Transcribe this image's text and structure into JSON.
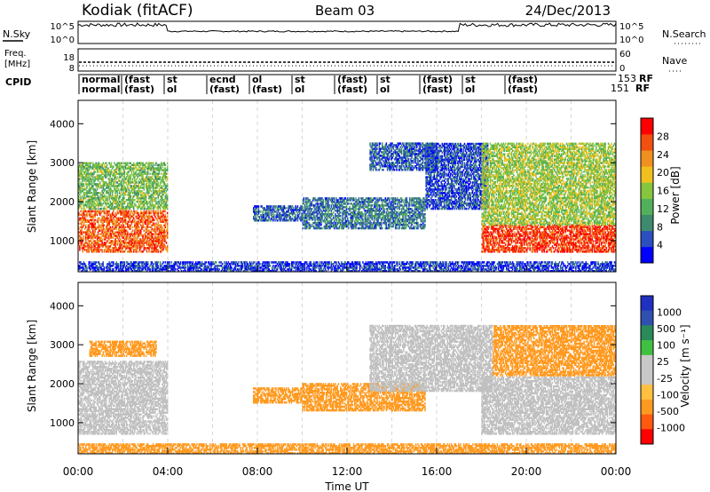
{
  "header": {
    "station": "Kodiak (fitACF)",
    "beam": "Beam 03",
    "date": "24/Dec/2013"
  },
  "noise_panel": {
    "left_label": "N.Sky",
    "right_label": "N.Search",
    "ticks": [
      "10^5",
      "10^0"
    ],
    "right_ticks": [
      "10^5",
      "10^0"
    ]
  },
  "freq_panel": {
    "left_label_1": "Freq.",
    "left_label_2": "[MHz]",
    "left_ticks": [
      "18",
      "8"
    ],
    "right_label": "Nave",
    "right_ticks": [
      "60",
      "0"
    ]
  },
  "cpid_panel": {
    "label": "CPID",
    "right_values": [
      "153",
      "151"
    ],
    "right_suffix": "RF",
    "entries": [
      {
        "top": "normal",
        "bottom": "normal"
      },
      {
        "top": "(fast",
        "bottom": "(fast)"
      },
      {
        "top": "st",
        "bottom": "ol"
      },
      {
        "top": "ecnd",
        "bottom": "(fast)"
      },
      {
        "top": "ol",
        "bottom": "(fast)"
      },
      {
        "top": "st",
        "bottom": "ol"
      },
      {
        "top": "(fast)",
        "bottom": "(fast)"
      },
      {
        "top": "st",
        "bottom": "ol"
      },
      {
        "top": "(fast)",
        "bottom": "(fast)"
      },
      {
        "top": "st",
        "bottom": "ol"
      },
      {
        "top": "(fast)",
        "bottom": "(fast)"
      }
    ]
  },
  "colors": {
    "power_scale": [
      "#0000ff",
      "#2b4fbf",
      "#3e8a6e",
      "#52b05a",
      "#86c63e",
      "#f0c020",
      "#f09020",
      "#f05010",
      "#ff0000"
    ],
    "velocity_scale": [
      "#ff0000",
      "#ff5a10",
      "#ff9a20",
      "#ffc040",
      "#c8c8c8",
      "#c8c8c8",
      "#40c040",
      "#2a8a5a",
      "#3050b0",
      "#2030c0"
    ],
    "ground_scatter": "#c0c0c0"
  },
  "chart_data": [
    {
      "type": "heatmap",
      "name": "power-panel",
      "ylabel": "Slant Range [km]",
      "ylim": [
        200,
        4600
      ],
      "yticks": [
        1000,
        2000,
        3000,
        4000
      ],
      "xlim": [
        0,
        24
      ],
      "colorbar": {
        "label": "Power [dB]",
        "ticks": [
          "4",
          "8",
          "12",
          "16",
          "20",
          "24",
          "28"
        ],
        "range": [
          0,
          32
        ]
      },
      "regions": [
        {
          "t0": 0.0,
          "t1": 4.0,
          "r0": 700,
          "r1": 1800,
          "value": 26
        },
        {
          "t0": 0.0,
          "t1": 4.0,
          "r0": 1800,
          "r1": 3000,
          "value": 14
        },
        {
          "t0": 7.8,
          "t1": 10.0,
          "r0": 1500,
          "r1": 1900,
          "value": 6
        },
        {
          "t0": 10.0,
          "t1": 15.5,
          "r0": 1300,
          "r1": 2100,
          "value": 8
        },
        {
          "t0": 13.0,
          "t1": 16.0,
          "r0": 2800,
          "r1": 3500,
          "value": 6
        },
        {
          "t0": 15.5,
          "t1": 18.3,
          "r0": 1800,
          "r1": 3500,
          "value": 5
        },
        {
          "t0": 18.0,
          "t1": 24.0,
          "r0": 700,
          "r1": 1400,
          "value": 28
        },
        {
          "t0": 18.0,
          "t1": 24.0,
          "r0": 1400,
          "r1": 3500,
          "value": 16
        },
        {
          "t0": 0.0,
          "t1": 24.0,
          "r0": 200,
          "r1": 450,
          "value": 4
        }
      ]
    },
    {
      "type": "heatmap",
      "name": "velocity-panel",
      "ylabel": "Slant Range [km]",
      "xlabel": "Time UT",
      "ylim": [
        200,
        4600
      ],
      "yticks": [
        1000,
        2000,
        3000,
        4000
      ],
      "xlim": [
        0,
        24
      ],
      "xticks": [
        "00:00",
        "04:00",
        "08:00",
        "12:00",
        "16:00",
        "20:00",
        "00:00"
      ],
      "colorbar": {
        "label": "Velocity [m s⁻¹]",
        "ticks": [
          "1000",
          "500",
          "100",
          "25",
          "-25",
          "-100",
          "-500",
          "-1000"
        ]
      },
      "regions": [
        {
          "t0": 0.0,
          "t1": 4.0,
          "r0": 700,
          "r1": 2600,
          "value": 0
        },
        {
          "t0": 0.5,
          "t1": 3.5,
          "r0": 2700,
          "r1": 3100,
          "value": -100
        },
        {
          "t0": 7.8,
          "t1": 10.0,
          "r0": 1500,
          "r1": 1900,
          "value": -100
        },
        {
          "t0": 10.0,
          "t1": 15.5,
          "r0": 1300,
          "r1": 2000,
          "value": -100
        },
        {
          "t0": 13.0,
          "t1": 18.5,
          "r0": 1800,
          "r1": 3500,
          "value": 0
        },
        {
          "t0": 18.0,
          "t1": 24.0,
          "r0": 700,
          "r1": 2200,
          "value": 0
        },
        {
          "t0": 18.5,
          "t1": 24.0,
          "r0": 2200,
          "r1": 3500,
          "value": -100
        },
        {
          "t0": 0.0,
          "t1": 24.0,
          "r0": 200,
          "r1": 450,
          "value": -100
        }
      ]
    }
  ]
}
